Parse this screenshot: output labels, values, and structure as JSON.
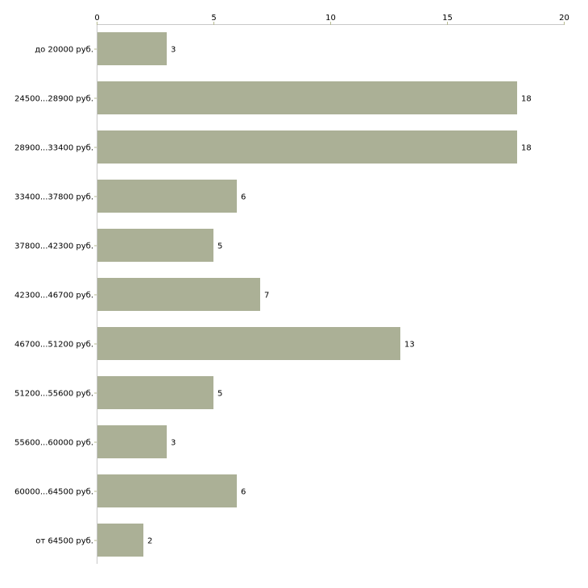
{
  "chart_data": {
    "type": "bar",
    "orientation": "horizontal",
    "title": "",
    "xlabel": "",
    "ylabel": "",
    "categories": [
      "до 20000 руб.",
      "24500...28900 руб.",
      "28900...33400 руб.",
      "33400...37800 руб.",
      "37800...42300 руб.",
      "42300...46700 руб.",
      "46700...51200 руб.",
      "51200...55600 руб.",
      "55600...60000 руб.",
      "60000...64500 руб.",
      "от 64500 руб."
    ],
    "values": [
      3,
      18,
      18,
      6,
      5,
      7,
      13,
      5,
      3,
      6,
      2
    ],
    "xlim": [
      0,
      20
    ],
    "xticks": [
      0,
      5,
      10,
      15,
      20
    ],
    "axis_position": "top",
    "grid": false,
    "colors": {
      "bar": "#abb096",
      "axis": "#c8c8c8",
      "tick": "#b5b98f"
    }
  }
}
